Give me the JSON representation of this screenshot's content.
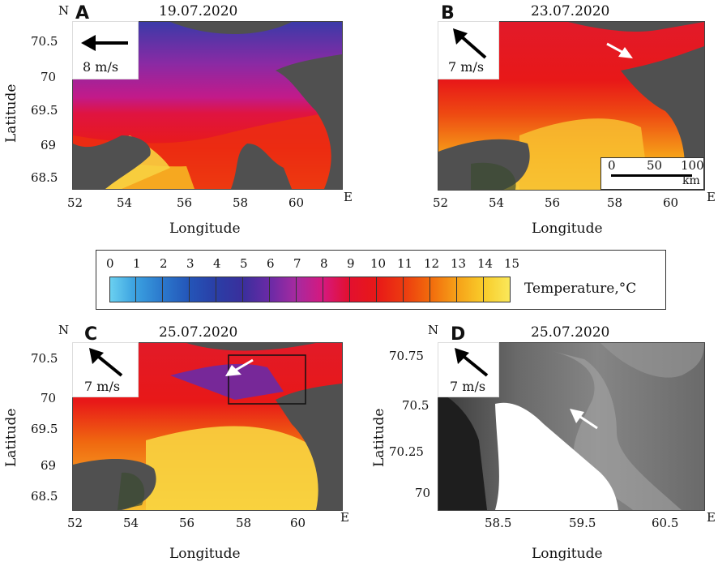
{
  "panels": [
    {
      "letter": "A",
      "date": "19.07.2020",
      "wind": "8 m/s",
      "xticks": [
        "52",
        "54",
        "56",
        "58",
        "60"
      ],
      "yticks": [
        "70.5",
        "70",
        "69.5",
        "69",
        "68.5"
      ],
      "xlabel": "Longitude",
      "ylabel": "Latitude",
      "north": "N",
      "east": "E"
    },
    {
      "letter": "B",
      "date": "23.07.2020",
      "wind": "7 m/s",
      "xticks": [
        "52",
        "54",
        "56",
        "58",
        "60"
      ],
      "xlabel": "Longitude",
      "east": "E",
      "scale": {
        "ticks": [
          "0",
          "50",
          "100"
        ],
        "unit": "km"
      }
    },
    {
      "letter": "C",
      "date": "25.07.2020",
      "wind": "7 m/s",
      "xticks": [
        "52",
        "54",
        "56",
        "58",
        "60"
      ],
      "yticks": [
        "70.5",
        "70",
        "69.5",
        "69",
        "68.5"
      ],
      "xlabel": "Longitude",
      "ylabel": "Latitude",
      "north": "N",
      "east": "E"
    },
    {
      "letter": "D",
      "date": "25.07.2020",
      "wind": "7 m/s",
      "xticks": [
        "58.5",
        "59.5",
        "60.5"
      ],
      "yticks": [
        "70.75",
        "70.5",
        "70.25",
        "70"
      ],
      "xlabel": "Longitude",
      "ylabel": "Latitude",
      "north": "N",
      "east": "E"
    }
  ],
  "colorbar": {
    "ticks": [
      "0",
      "1",
      "2",
      "3",
      "4",
      "5",
      "6",
      "7",
      "8",
      "9",
      "10",
      "11",
      "12",
      "13",
      "14",
      "15"
    ],
    "title": "Temperature,°C",
    "colors": [
      "#6ad0f0",
      "#3aa0e0",
      "#2b78cc",
      "#2455b8",
      "#2a3ea6",
      "#3a2f9c",
      "#6a2aa6",
      "#a62aa0",
      "#d6187e",
      "#e3102e",
      "#e81818",
      "#ec3a10",
      "#f26a0c",
      "#f6a018",
      "#f8cc2a",
      "#fae85a"
    ]
  },
  "colors": {
    "land": "#505050",
    "sea_cold": "#5a2aa8",
    "sea_warm": "#e41a1a",
    "sea_hot": "#f6b820"
  }
}
